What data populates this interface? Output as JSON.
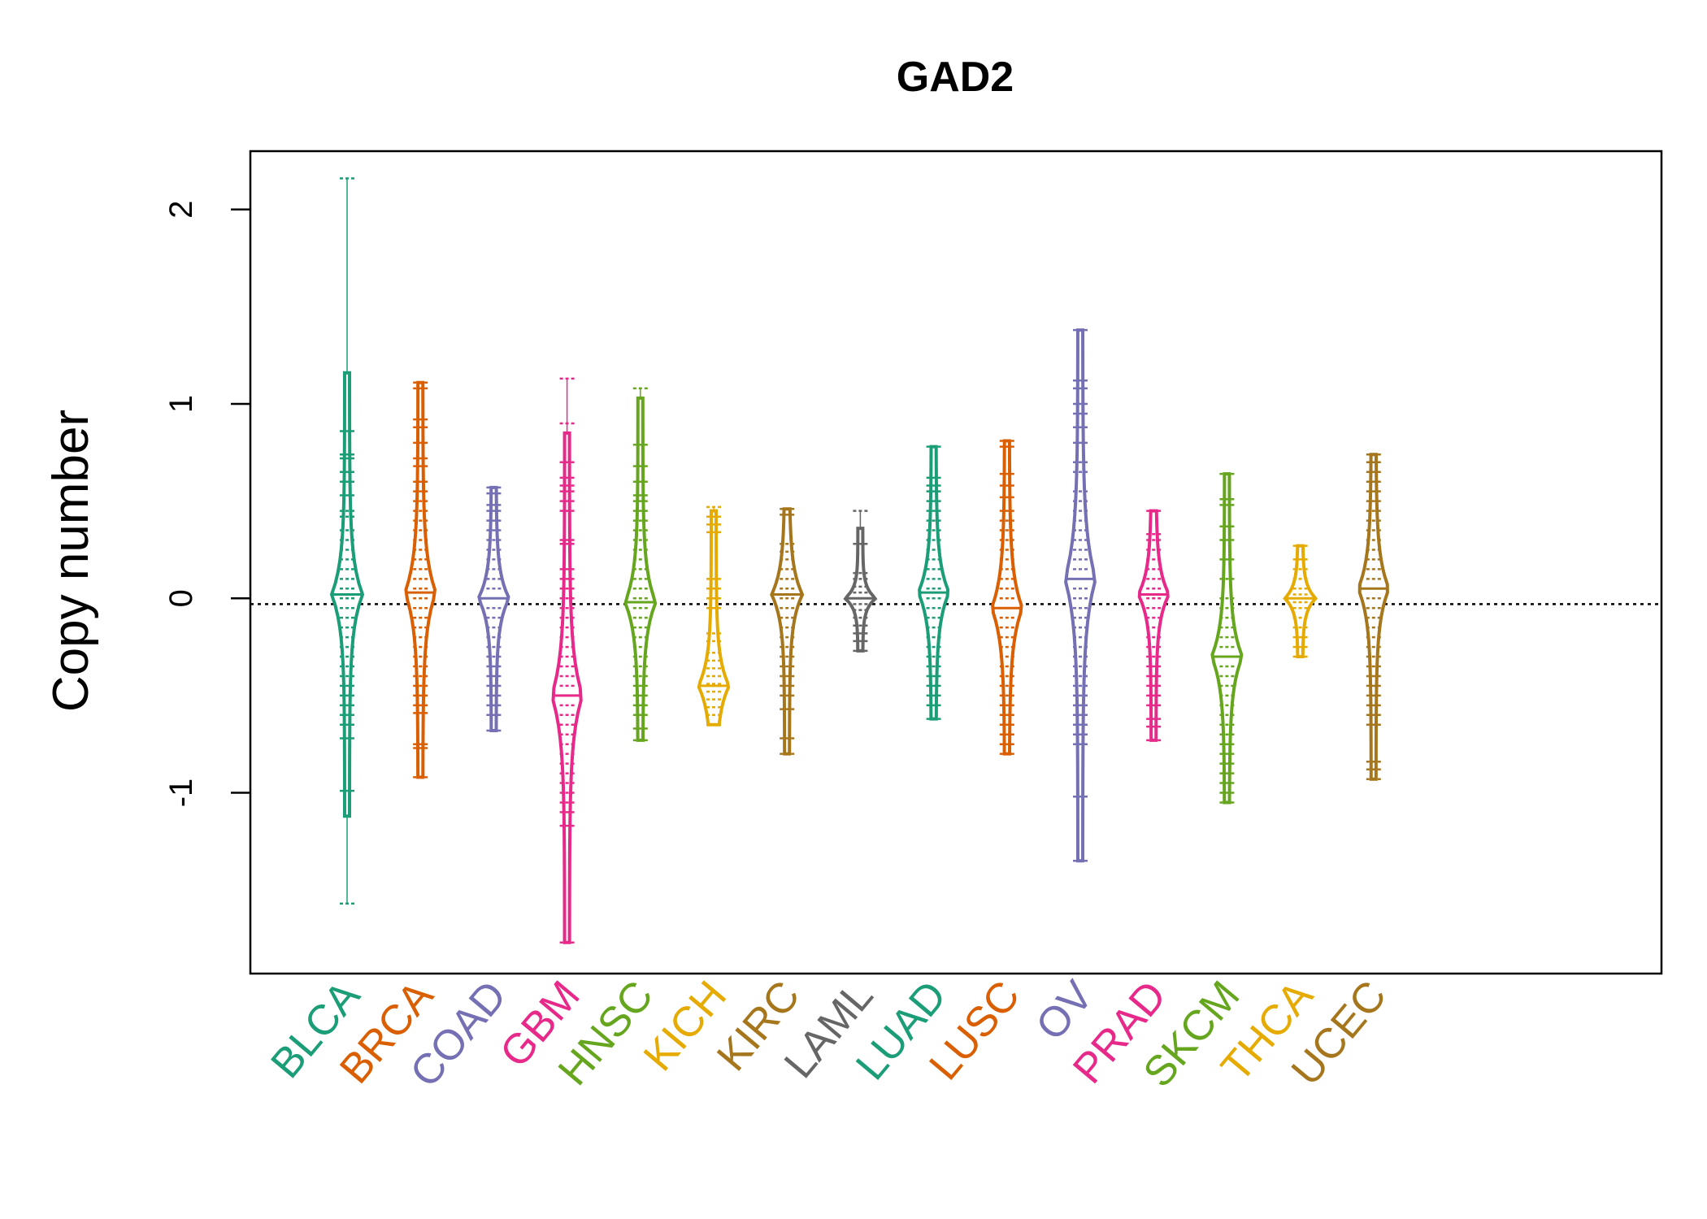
{
  "chart_data": {
    "type": "scatter",
    "subtype": "beanplot",
    "title": "GAD2",
    "xlabel": "",
    "ylabel": "Copy number",
    "ylim": [
      -1.93,
      2.3
    ],
    "yticks": [
      -1,
      0,
      1,
      2
    ],
    "ytick_labels": [
      "-1",
      "0",
      "1",
      "2"
    ],
    "reference_line": -0.03,
    "grid": false,
    "legend": "none",
    "categories": [
      "BLCA",
      "BRCA",
      "COAD",
      "GBM",
      "HNSC",
      "KICH",
      "KIRC",
      "LAML",
      "LUAD",
      "LUSC",
      "OV",
      "PRAD",
      "SKCM",
      "THCA",
      "UCEC"
    ],
    "series": [
      {
        "category": "BLCA",
        "color": "#1b9e77",
        "center": 0.02,
        "spread": 0.38,
        "points": [
          2.16,
          0.86,
          0.74,
          0.72,
          0.65,
          0.6,
          0.53,
          0.45,
          0.42,
          0.35,
          0.3,
          0.25,
          0.2,
          0.15,
          0.1,
          0.05,
          0.0,
          -0.05,
          -0.1,
          -0.15,
          -0.2,
          -0.25,
          -0.3,
          -0.35,
          -0.4,
          -0.45,
          -0.5,
          -0.55,
          -0.6,
          -0.65,
          -0.72,
          -0.99,
          -1.57
        ]
      },
      {
        "category": "BRCA",
        "color": "#d95f02",
        "center": 0.03,
        "spread": 0.4,
        "points": [
          1.11,
          1.08,
          0.92,
          0.88,
          0.8,
          0.72,
          0.68,
          0.6,
          0.55,
          0.5,
          0.45,
          0.4,
          0.35,
          0.3,
          0.25,
          0.2,
          0.15,
          0.1,
          0.05,
          0.0,
          -0.05,
          -0.1,
          -0.15,
          -0.2,
          -0.25,
          -0.3,
          -0.35,
          -0.4,
          -0.45,
          -0.5,
          -0.55,
          -0.59,
          -0.75,
          -0.77,
          -0.92
        ]
      },
      {
        "category": "COAD",
        "color": "#7570b3",
        "center": 0.0,
        "spread": 0.28,
        "points": [
          0.57,
          0.54,
          0.48,
          0.45,
          0.4,
          0.35,
          0.3,
          0.25,
          0.2,
          0.15,
          0.1,
          0.05,
          0.0,
          -0.05,
          -0.1,
          -0.15,
          -0.2,
          -0.25,
          -0.3,
          -0.35,
          -0.4,
          -0.45,
          -0.5,
          -0.55,
          -0.6,
          -0.68
        ]
      },
      {
        "category": "GBM",
        "color": "#e7298a",
        "center": -0.5,
        "spread": 0.45,
        "points": [
          1.13,
          0.9,
          0.7,
          0.62,
          0.58,
          0.55,
          0.5,
          0.45,
          0.3,
          0.28,
          0.15,
          0.1,
          0.05,
          0.0,
          -0.05,
          -0.1,
          -0.15,
          -0.2,
          -0.25,
          -0.3,
          -0.35,
          -0.4,
          -0.45,
          -0.5,
          -0.55,
          -0.6,
          -0.65,
          -0.7,
          -0.75,
          -0.8,
          -0.85,
          -0.9,
          -0.95,
          -1.0,
          -1.05,
          -1.1,
          -1.17,
          -1.77
        ]
      },
      {
        "category": "HNSC",
        "color": "#66a61e",
        "center": -0.02,
        "spread": 0.35,
        "points": [
          1.08,
          0.79,
          0.68,
          0.6,
          0.53,
          0.5,
          0.45,
          0.4,
          0.35,
          0.3,
          0.25,
          0.2,
          0.15,
          0.1,
          0.05,
          0.0,
          -0.05,
          -0.1,
          -0.15,
          -0.2,
          -0.25,
          -0.3,
          -0.35,
          -0.4,
          -0.45,
          -0.5,
          -0.55,
          -0.6,
          -0.67,
          -0.73
        ]
      },
      {
        "category": "KICH",
        "color": "#e6ab02",
        "center": -0.45,
        "spread": 0.3,
        "points": [
          0.47,
          0.42,
          0.38,
          0.34,
          0.1,
          0.05,
          0.0,
          -0.05,
          -0.18,
          -0.22,
          -0.28,
          -0.32,
          -0.36,
          -0.4,
          -0.44,
          -0.48,
          -0.52,
          -0.56,
          -0.6,
          -0.65
        ]
      },
      {
        "category": "KIRC",
        "color": "#a6761d",
        "center": 0.02,
        "spread": 0.3,
        "points": [
          0.46,
          0.43,
          0.28,
          0.24,
          0.2,
          0.15,
          0.1,
          0.05,
          0.0,
          -0.05,
          -0.1,
          -0.15,
          -0.2,
          -0.25,
          -0.3,
          -0.35,
          -0.4,
          -0.45,
          -0.5,
          -0.57,
          -0.72,
          -0.8
        ]
      },
      {
        "category": "LAML",
        "color": "#666666",
        "center": 0.0,
        "spread": 0.12,
        "points": [
          0.45,
          0.28,
          0.13,
          0.1,
          0.06,
          0.03,
          0.0,
          -0.03,
          -0.06,
          -0.1,
          -0.14,
          -0.18,
          -0.22,
          -0.27
        ]
      },
      {
        "category": "LUAD",
        "color": "#1b9e77",
        "center": 0.03,
        "spread": 0.33,
        "points": [
          0.78,
          0.62,
          0.58,
          0.55,
          0.5,
          0.45,
          0.4,
          0.35,
          0.3,
          0.25,
          0.2,
          0.15,
          0.1,
          0.05,
          0.0,
          -0.05,
          -0.1,
          -0.15,
          -0.2,
          -0.25,
          -0.3,
          -0.35,
          -0.4,
          -0.45,
          -0.5,
          -0.55,
          -0.62
        ]
      },
      {
        "category": "LUSC",
        "color": "#d95f02",
        "center": -0.05,
        "spread": 0.38,
        "points": [
          0.81,
          0.78,
          0.64,
          0.58,
          0.52,
          0.45,
          0.4,
          0.35,
          0.3,
          0.25,
          0.2,
          0.15,
          0.1,
          0.05,
          0.0,
          -0.05,
          -0.1,
          -0.15,
          -0.2,
          -0.25,
          -0.3,
          -0.35,
          -0.4,
          -0.45,
          -0.5,
          -0.55,
          -0.6,
          -0.65,
          -0.7,
          -0.75,
          -0.8
        ]
      },
      {
        "category": "OV",
        "color": "#7570b3",
        "center": 0.1,
        "spread": 0.5,
        "points": [
          1.38,
          1.12,
          1.08,
          1.0,
          0.95,
          0.88,
          0.8,
          0.7,
          0.65,
          0.55,
          0.5,
          0.45,
          0.4,
          0.35,
          0.3,
          0.25,
          0.2,
          0.15,
          0.1,
          0.05,
          0.0,
          -0.05,
          -0.1,
          -0.15,
          -0.2,
          -0.25,
          -0.3,
          -0.35,
          -0.4,
          -0.45,
          -0.5,
          -0.55,
          -0.6,
          -0.65,
          -0.7,
          -0.75,
          -1.02,
          -1.35
        ]
      },
      {
        "category": "PRAD",
        "color": "#e7298a",
        "center": 0.02,
        "spread": 0.28,
        "points": [
          0.45,
          0.33,
          0.3,
          0.25,
          0.2,
          0.15,
          0.1,
          0.05,
          0.0,
          -0.05,
          -0.1,
          -0.15,
          -0.2,
          -0.25,
          -0.3,
          -0.35,
          -0.4,
          -0.45,
          -0.5,
          -0.55,
          -0.62,
          -0.66,
          -0.73
        ]
      },
      {
        "category": "SKCM",
        "color": "#66a61e",
        "center": -0.3,
        "spread": 0.35,
        "points": [
          0.64,
          0.51,
          0.48,
          0.37,
          0.3,
          0.2,
          0.1,
          0.0,
          -0.05,
          -0.1,
          -0.15,
          -0.2,
          -0.25,
          -0.3,
          -0.35,
          -0.4,
          -0.45,
          -0.5,
          -0.55,
          -0.6,
          -0.65,
          -0.7,
          -0.75,
          -0.8,
          -0.85,
          -0.9,
          -0.95,
          -1.0,
          -1.05
        ]
      },
      {
        "category": "THCA",
        "color": "#e6ab02",
        "center": 0.0,
        "spread": 0.15,
        "points": [
          0.27,
          0.2,
          0.15,
          0.1,
          0.05,
          0.02,
          0.0,
          -0.02,
          -0.05,
          -0.1,
          -0.15,
          -0.2,
          -0.25,
          -0.3
        ]
      },
      {
        "category": "UCEC",
        "color": "#a6761d",
        "center": 0.05,
        "spread": 0.35,
        "points": [
          0.74,
          0.7,
          0.65,
          0.6,
          0.55,
          0.5,
          0.45,
          0.4,
          0.35,
          0.3,
          0.25,
          0.2,
          0.15,
          0.1,
          0.05,
          0.0,
          -0.05,
          -0.1,
          -0.15,
          -0.2,
          -0.25,
          -0.3,
          -0.35,
          -0.4,
          -0.45,
          -0.5,
          -0.55,
          -0.6,
          -0.65,
          -0.84,
          -0.88,
          -0.93
        ]
      }
    ]
  }
}
